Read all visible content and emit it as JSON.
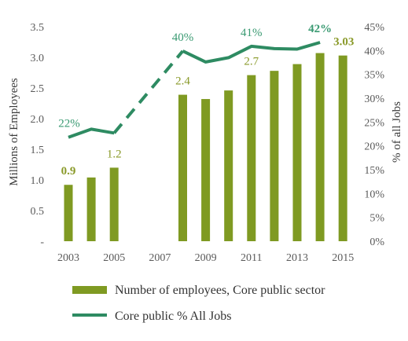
{
  "chart_data": {
    "type": "bar",
    "categories": [
      "2003",
      "2004",
      "2005",
      "2006",
      "2007",
      "2008",
      "2009",
      "2010",
      "2011",
      "2012",
      "2013",
      "2014",
      "2015"
    ],
    "x_tick_labels": [
      "2003",
      "2005",
      "2007",
      "2009",
      "2011",
      "2013",
      "2015"
    ],
    "y_left": {
      "label": "Millions of Employees",
      "ticks": [
        "-",
        "0.5",
        "1.0",
        "1.5",
        "2.0",
        "2.5",
        "3.0",
        "3.5"
      ],
      "lim": [
        0,
        3.5
      ]
    },
    "y_right": {
      "label": "% of all Jobs",
      "ticks": [
        "0%",
        "5%",
        "10%",
        "15%",
        "20%",
        "25%",
        "30%",
        "35%",
        "40%",
        "45%"
      ],
      "lim": [
        0,
        45
      ]
    },
    "series": [
      {
        "name": "Number of employees, Core public sector",
        "kind": "bar",
        "axis": "left",
        "color": "#7f9a22",
        "values": [
          0.92,
          1.04,
          1.2,
          null,
          null,
          2.39,
          2.32,
          2.46,
          2.71,
          2.78,
          2.89,
          3.07,
          3.03
        ]
      },
      {
        "name": "Core public % All Jobs",
        "kind": "line",
        "axis": "right",
        "color": "#2e8b62",
        "values": [
          21.8,
          23.5,
          22.7,
          null,
          null,
          39.9,
          37.6,
          38.5,
          40.9,
          40.4,
          40.3,
          41.7,
          null
        ],
        "dashed_segments": [
          [
            2,
            5
          ]
        ]
      }
    ],
    "data_labels": [
      {
        "series": 0,
        "category": "2003",
        "text": "0.9",
        "bold": true
      },
      {
        "series": 0,
        "category": "2005",
        "text": "1.2",
        "bold": false
      },
      {
        "series": 0,
        "category": "2008",
        "text": "2.4",
        "bold": false
      },
      {
        "series": 0,
        "category": "2011",
        "text": "2.7",
        "bold": false
      },
      {
        "series": 0,
        "category": "2015",
        "text": "3.03",
        "bold": true
      },
      {
        "series": 1,
        "category": "2003",
        "text": "22%",
        "bold": false
      },
      {
        "series": 1,
        "category": "2008",
        "text": "40%",
        "bold": false
      },
      {
        "series": 1,
        "category": "2011",
        "text": "41%",
        "bold": false
      },
      {
        "series": 1,
        "category": "2014",
        "text": "42%",
        "bold": true
      }
    ],
    "legend_position": "bottom",
    "grid": false
  }
}
